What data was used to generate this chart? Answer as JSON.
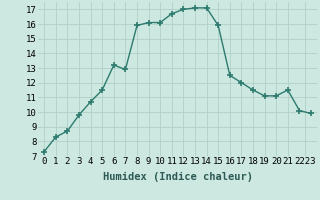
{
  "x": [
    0,
    1,
    2,
    3,
    4,
    5,
    6,
    7,
    8,
    9,
    10,
    11,
    12,
    13,
    14,
    15,
    16,
    17,
    18,
    19,
    20,
    21,
    22,
    23
  ],
  "y": [
    7.3,
    8.3,
    8.7,
    9.8,
    10.7,
    11.5,
    13.2,
    12.9,
    15.9,
    16.1,
    16.1,
    16.7,
    17.0,
    17.1,
    17.1,
    15.9,
    12.5,
    12.0,
    11.5,
    11.1,
    11.1,
    11.5,
    10.1,
    9.9
  ],
  "line_color": "#2d7a6e",
  "marker": "+",
  "marker_size": 4,
  "marker_lw": 1.2,
  "background_color": "#cce8e0",
  "grid_color": "#b0d0c8",
  "xlabel": "Humidex (Indice chaleur)",
  "xlabel_fontsize": 7.5,
  "tick_fontsize": 6.5,
  "ylim": [
    7,
    17.5
  ],
  "xlim": [
    -0.5,
    23.5
  ],
  "yticks": [
    7,
    8,
    9,
    10,
    11,
    12,
    13,
    14,
    15,
    16,
    17
  ],
  "xtick_labels": [
    "0",
    "1",
    "2",
    "3",
    "4",
    "5",
    "6",
    "7",
    "8",
    "9",
    "10",
    "11",
    "12",
    "13",
    "14",
    "15",
    "16",
    "17",
    "18",
    "19",
    "20",
    "21",
    "2223"
  ],
  "xticks": [
    0,
    1,
    2,
    3,
    4,
    5,
    6,
    7,
    8,
    9,
    10,
    11,
    12,
    13,
    14,
    15,
    16,
    17,
    18,
    19,
    20,
    21,
    22.5
  ]
}
